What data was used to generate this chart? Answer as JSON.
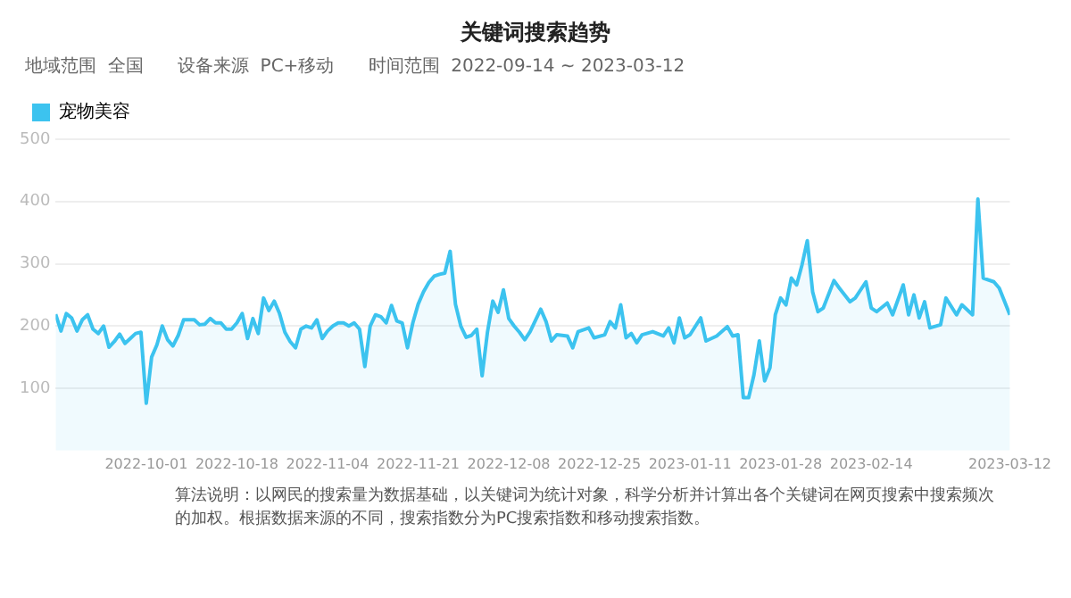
{
  "chart_data": {
    "type": "area",
    "title": "关键词搜索趋势",
    "subtitle": "地域范围  全国      设备来源  PC+移动      时间范围  2022-09-14 ~ 2023-03-12",
    "annotations": [
      "算法说明：以网民的搜索量为数据基础，以关键词为统计对象，科学分析并计算出各个关键词在网页搜索中搜索频次的加权。根据数据来源的不同，搜索指数分为PC搜索指数和移动搜索指数。"
    ],
    "x": [
      "2022-09-14",
      "2022-09-15",
      "2022-09-16",
      "2022-09-17",
      "2022-09-18",
      "2022-09-19",
      "2022-09-20",
      "2022-09-21",
      "2022-09-22",
      "2022-09-23",
      "2022-09-24",
      "2022-09-25",
      "2022-09-26",
      "2022-09-27",
      "2022-09-28",
      "2022-09-29",
      "2022-09-30",
      "2022-10-01",
      "2022-10-02",
      "2022-10-03",
      "2022-10-04",
      "2022-10-05",
      "2022-10-06",
      "2022-10-07",
      "2022-10-08",
      "2022-10-09",
      "2022-10-10",
      "2022-10-11",
      "2022-10-12",
      "2022-10-13",
      "2022-10-14",
      "2022-10-15",
      "2022-10-16",
      "2022-10-17",
      "2022-10-18",
      "2022-10-19",
      "2022-10-20",
      "2022-10-21",
      "2022-10-22",
      "2022-10-23",
      "2022-10-24",
      "2022-10-25",
      "2022-10-26",
      "2022-10-27",
      "2022-10-28",
      "2022-10-29",
      "2022-10-30",
      "2022-10-31",
      "2022-11-01",
      "2022-11-02",
      "2022-11-03",
      "2022-11-04",
      "2022-11-05",
      "2022-11-06",
      "2022-11-07",
      "2022-11-08",
      "2022-11-09",
      "2022-11-10",
      "2022-11-11",
      "2022-11-12",
      "2022-11-13",
      "2022-11-14",
      "2022-11-15",
      "2022-11-16",
      "2022-11-17",
      "2022-11-18",
      "2022-11-19",
      "2022-11-20",
      "2022-11-21",
      "2022-11-22",
      "2022-11-23",
      "2022-11-24",
      "2022-11-25",
      "2022-11-26",
      "2022-11-27",
      "2022-11-28",
      "2022-11-29",
      "2022-11-30",
      "2022-12-01",
      "2022-12-02",
      "2022-12-03",
      "2022-12-04",
      "2022-12-05",
      "2022-12-06",
      "2022-12-07",
      "2022-12-08",
      "2022-12-09",
      "2022-12-10",
      "2022-12-11",
      "2022-12-12",
      "2022-12-14",
      "2022-12-15",
      "2022-12-16",
      "2022-12-17",
      "2022-12-19",
      "2022-12-20",
      "2022-12-21",
      "2022-12-23",
      "2022-12-24",
      "2022-12-26",
      "2022-12-27",
      "2022-12-28",
      "2022-12-29",
      "2022-12-30",
      "2022-12-31",
      "2023-01-01",
      "2023-01-02",
      "2023-01-04",
      "2023-01-06",
      "2023-01-07",
      "2023-01-08",
      "2023-01-09",
      "2023-01-10",
      "2023-01-11",
      "2023-01-13",
      "2023-01-14",
      "2023-01-16",
      "2023-01-18",
      "2023-01-19",
      "2023-01-20",
      "2023-01-21",
      "2023-01-22",
      "2023-01-23",
      "2023-01-24",
      "2023-01-25",
      "2023-01-26",
      "2023-01-27",
      "2023-01-28",
      "2023-01-29",
      "2023-01-30",
      "2023-01-31",
      "2023-02-01",
      "2023-02-02",
      "2023-02-03",
      "2023-02-04",
      "2023-02-05",
      "2023-02-07",
      "2023-02-08",
      "2023-02-10",
      "2023-02-11",
      "2023-02-13",
      "2023-02-14",
      "2023-02-15",
      "2023-02-17",
      "2023-02-18",
      "2023-02-20",
      "2023-02-21",
      "2023-02-22",
      "2023-02-23",
      "2023-02-24",
      "2023-02-25",
      "2023-02-27",
      "2023-02-28",
      "2023-03-02",
      "2023-03-03",
      "2023-03-05",
      "2023-03-06",
      "2023-03-07",
      "2023-03-09",
      "2023-03-10",
      "2023-03-12"
    ],
    "series": [
      {
        "name": "宠物美容",
        "color": "#3cc3ef",
        "values": [
          219,
          192,
          220,
          213,
          192,
          210,
          218,
          195,
          188,
          200,
          166,
          175,
          187,
          172,
          180,
          188,
          190,
          76,
          150,
          170,
          200,
          178,
          168,
          185,
          210,
          210,
          210,
          202,
          203,
          212,
          205,
          205,
          195,
          195,
          205,
          220,
          180,
          212,
          188,
          245,
          225,
          240,
          220,
          190,
          175,
          165,
          195,
          200,
          197,
          210,
          180,
          192,
          200,
          205,
          205,
          200,
          205,
          195,
          135,
          200,
          218,
          215,
          205,
          233,
          208,
          205,
          165,
          205,
          235,
          255,
          270,
          280,
          283,
          285,
          320,
          235,
          200,
          182,
          185,
          195,
          120,
          190,
          240,
          222,
          258,
          212,
          200,
          190,
          178,
          191,
          227,
          207,
          176,
          186,
          184,
          165,
          191,
          197,
          181,
          186,
          207,
          197,
          234,
          181,
          188,
          173,
          186,
          191,
          184,
          197,
          173,
          213,
          181,
          186,
          213,
          176,
          184,
          199,
          184,
          186,
          85,
          85,
          122,
          176,
          112,
          133,
          218,
          245,
          234,
          277,
          266,
          298,
          337,
          255,
          223,
          229,
          273,
          261,
          239,
          245,
          271,
          229,
          223,
          237,
          218,
          266,
          218,
          250,
          213,
          239,
          197,
          202,
          245,
          218,
          234,
          218,
          404,
          277,
          271,
          261,
          218
        ]
      }
    ],
    "xlim": [
      "2022-09-14",
      "2023-03-12"
    ],
    "xticks": [
      "2022-10-01",
      "2022-10-18",
      "2022-11-04",
      "2022-11-21",
      "2022-12-08",
      "2022-12-25",
      "2023-01-11",
      "2023-01-28",
      "2023-02-14",
      "2023-03-12"
    ],
    "ylim": [
      0,
      500
    ],
    "yticks": [
      100,
      200,
      300,
      400,
      500
    ],
    "grid": "y",
    "legend": "top left",
    "marker": "none",
    "line_style": "solid"
  }
}
